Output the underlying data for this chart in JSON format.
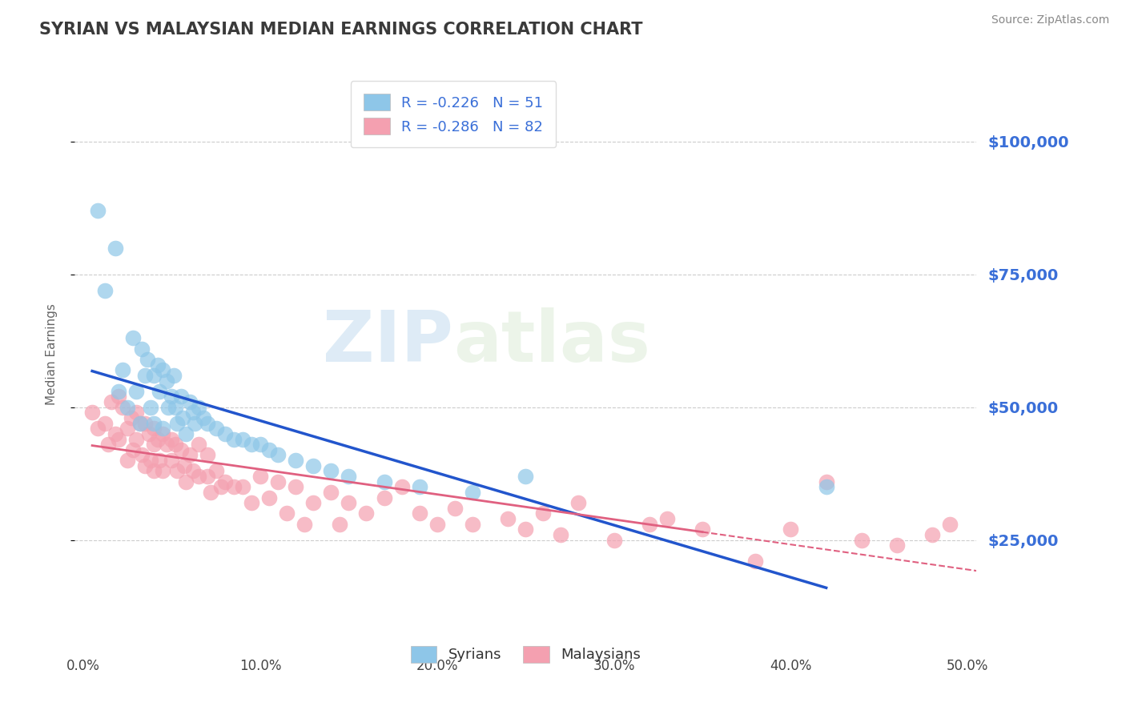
{
  "title": "SYRIAN VS MALAYSIAN MEDIAN EARNINGS CORRELATION CHART",
  "source": "Source: ZipAtlas.com",
  "ylabel": "Median Earnings",
  "xlim": [
    -0.005,
    0.505
  ],
  "ylim": [
    5000,
    115000
  ],
  "yticks": [
    25000,
    50000,
    75000,
    100000
  ],
  "ytick_labels": [
    "$25,000",
    "$50,000",
    "$75,000",
    "$100,000"
  ],
  "xticks": [
    0.0,
    0.1,
    0.2,
    0.3,
    0.4,
    0.5
  ],
  "xtick_labels": [
    "0.0%",
    "10.0%",
    "20.0%",
    "30.0%",
    "40.0%",
    "50.0%"
  ],
  "color_syrian": "#8ec6e8",
  "color_malaysian": "#f4a0b0",
  "color_axis_labels": "#3a6fd8",
  "color_trendline_syrian": "#2255cc",
  "color_trendline_malaysian": "#e06080",
  "watermark_zip": "ZIP",
  "watermark_atlas": "atlas",
  "syrian_x": [
    0.008,
    0.012,
    0.018,
    0.02,
    0.022,
    0.025,
    0.028,
    0.03,
    0.032,
    0.033,
    0.035,
    0.036,
    0.038,
    0.04,
    0.04,
    0.042,
    0.043,
    0.045,
    0.045,
    0.047,
    0.048,
    0.05,
    0.051,
    0.052,
    0.053,
    0.055,
    0.056,
    0.058,
    0.06,
    0.062,
    0.063,
    0.065,
    0.068,
    0.07,
    0.075,
    0.08,
    0.085,
    0.09,
    0.095,
    0.1,
    0.105,
    0.11,
    0.12,
    0.13,
    0.14,
    0.15,
    0.17,
    0.19,
    0.22,
    0.25,
    0.42
  ],
  "syrian_y": [
    87000,
    72000,
    80000,
    53000,
    57000,
    50000,
    63000,
    53000,
    47000,
    61000,
    56000,
    59000,
    50000,
    56000,
    47000,
    58000,
    53000,
    57000,
    46000,
    55000,
    50000,
    52000,
    56000,
    50000,
    47000,
    52000,
    48000,
    45000,
    51000,
    49000,
    47000,
    50000,
    48000,
    47000,
    46000,
    45000,
    44000,
    44000,
    43000,
    43000,
    42000,
    41000,
    40000,
    39000,
    38000,
    37000,
    36000,
    35000,
    34000,
    37000,
    35000
  ],
  "malaysian_x": [
    0.005,
    0.008,
    0.012,
    0.014,
    0.016,
    0.018,
    0.02,
    0.02,
    0.022,
    0.025,
    0.025,
    0.027,
    0.028,
    0.03,
    0.03,
    0.032,
    0.033,
    0.035,
    0.035,
    0.037,
    0.038,
    0.04,
    0.04,
    0.04,
    0.042,
    0.043,
    0.045,
    0.045,
    0.047,
    0.05,
    0.05,
    0.052,
    0.053,
    0.055,
    0.057,
    0.058,
    0.06,
    0.062,
    0.065,
    0.065,
    0.07,
    0.07,
    0.072,
    0.075,
    0.078,
    0.08,
    0.085,
    0.09,
    0.095,
    0.1,
    0.105,
    0.11,
    0.115,
    0.12,
    0.125,
    0.13,
    0.14,
    0.145,
    0.15,
    0.16,
    0.17,
    0.18,
    0.19,
    0.2,
    0.21,
    0.22,
    0.24,
    0.25,
    0.26,
    0.27,
    0.28,
    0.3,
    0.32,
    0.33,
    0.35,
    0.38,
    0.4,
    0.42,
    0.44,
    0.46,
    0.48,
    0.49
  ],
  "malaysian_y": [
    49000,
    46000,
    47000,
    43000,
    51000,
    45000,
    52000,
    44000,
    50000,
    46000,
    40000,
    48000,
    42000,
    49000,
    44000,
    47000,
    41000,
    47000,
    39000,
    45000,
    40000,
    46000,
    43000,
    38000,
    44000,
    40000,
    45000,
    38000,
    43000,
    44000,
    40000,
    43000,
    38000,
    42000,
    39000,
    36000,
    41000,
    38000,
    43000,
    37000,
    41000,
    37000,
    34000,
    38000,
    35000,
    36000,
    35000,
    35000,
    32000,
    37000,
    33000,
    36000,
    30000,
    35000,
    28000,
    32000,
    34000,
    28000,
    32000,
    30000,
    33000,
    35000,
    30000,
    28000,
    31000,
    28000,
    29000,
    27000,
    30000,
    26000,
    32000,
    25000,
    28000,
    29000,
    27000,
    21000,
    27000,
    36000,
    25000,
    24000,
    26000,
    28000
  ]
}
